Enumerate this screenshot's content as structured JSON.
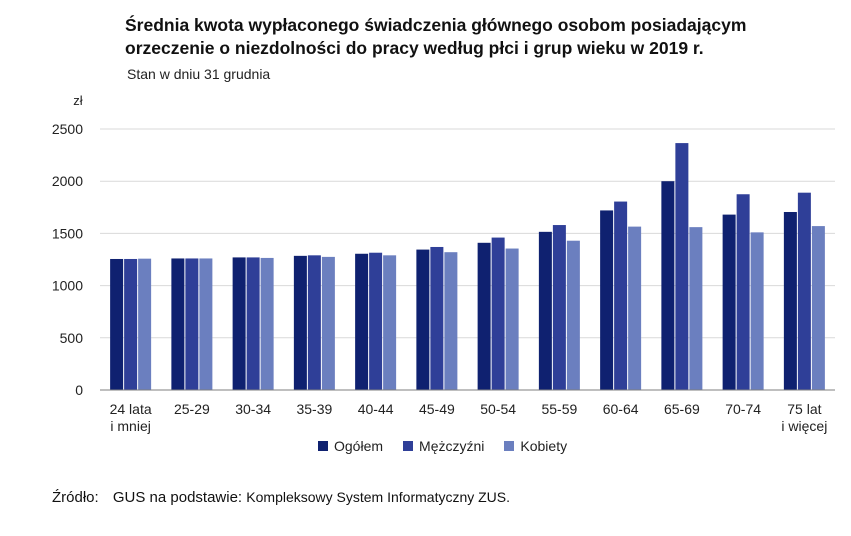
{
  "title": "Średnia kwota wypłaconego świadczenia głównego osobom posiadającym orzeczenie o niezdolności do pracy według płci i grup wieku w 2019 r.",
  "subtitle": "Stan w dniu 31 grudnia",
  "source": {
    "label": "Źródło:",
    "basis": "GUS na podstawie:",
    "text": "Kompleksowy System Informatyczny ZUS."
  },
  "colors": {
    "ogolem": "#0f2170",
    "mezczyzni": "#2f3f98",
    "kobiety": "#6b7fbf",
    "grid": "#d9d9d9",
    "axis": "#7f7f7f"
  },
  "chart_data": {
    "type": "bar",
    "title": "Średnia kwota wypłaconego świadczenia głównego osobom posiadającym orzeczenie o niezdolności do pracy według płci i grup wieku w 2019 r.",
    "subtitle": "Stan w dniu 31 grudnia",
    "ylabel": "zł",
    "xlabel": "",
    "ylim": [
      0,
      2500
    ],
    "yticks": [
      0,
      500,
      1000,
      1500,
      2000,
      2500
    ],
    "grid": true,
    "legend_position": "bottom",
    "categories": [
      [
        "24 lata",
        "i mniej"
      ],
      [
        "25-29"
      ],
      [
        "30-34"
      ],
      [
        "35-39"
      ],
      [
        "40-44"
      ],
      [
        "45-49"
      ],
      [
        "50-54"
      ],
      [
        "55-59"
      ],
      [
        "60-64"
      ],
      [
        "65-69"
      ],
      [
        "70-74"
      ],
      [
        "75 lat",
        "i więcej"
      ]
    ],
    "series": [
      {
        "name": "Ogółem",
        "color": "#0f2170",
        "values": [
          1255,
          1260,
          1270,
          1285,
          1305,
          1345,
          1410,
          1515,
          1720,
          2000,
          1680,
          1705
        ]
      },
      {
        "name": "Mężczyźni",
        "color": "#2f3f98",
        "values": [
          1255,
          1260,
          1270,
          1290,
          1315,
          1370,
          1460,
          1580,
          1805,
          2365,
          1875,
          1890
        ]
      },
      {
        "name": "Kobiety",
        "color": "#6b7fbf",
        "values": [
          1258,
          1260,
          1265,
          1275,
          1290,
          1320,
          1355,
          1430,
          1565,
          1560,
          1510,
          1570
        ]
      }
    ]
  }
}
